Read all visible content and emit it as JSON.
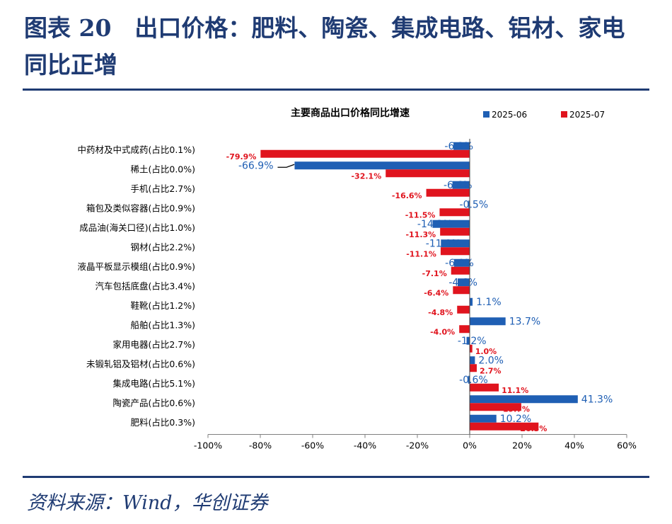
{
  "figure": {
    "title": "图表 20　出口价格：肥料、陶瓷、集成电路、铝材、家电同比正增",
    "source": "资料来源：Wind，华创证券"
  },
  "colors": {
    "series1": "#1F5FB4",
    "series2": "#E0141E",
    "brand": "#1F3B73"
  },
  "chart_data": {
    "type": "bar",
    "orientation": "horizontal",
    "title": "主要商品出口价格同比增速",
    "legend_position": "top-right",
    "grid": false,
    "categories": [
      "中药材及中式成药(占比0.1%)",
      "稀土(占比0.0%)",
      "手机(占比2.7%)",
      "箱包及类似容器(占比0.9%)",
      "成品油(海关口径)(占比1.0%)",
      "钢材(占比2.2%)",
      "液晶平板显示模组(占比0.9%)",
      "汽车包括底盘(占比3.4%)",
      "鞋靴(占比1.2%)",
      "船舶(占比1.3%)",
      "家用电器(占比2.7%)",
      "未锻轧铝及铝材(占比0.6%)",
      "集成电路(占比5.1%)",
      "陶瓷产品(占比0.6%)",
      "肥料(占比0.3%)"
    ],
    "series": [
      {
        "name": "2025-06",
        "values": [
          -6.2,
          -66.9,
          -6.6,
          -0.5,
          -14.2,
          -11.0,
          -6.0,
          -4.6,
          1.1,
          13.7,
          -1.2,
          2.0,
          -0.6,
          41.3,
          10.2
        ],
        "labels": [
          "-6.2%",
          "-66.9%",
          "-6.6%",
          "-0.5%",
          "-14.2%",
          "-11.0%",
          "-6.0%",
          "-4.6%",
          "1.1%",
          "13.7%",
          "-1.2%",
          "2.0%",
          "-0.6%",
          "41.3%",
          "10.2%"
        ]
      },
      {
        "name": "2025-07",
        "values": [
          -79.9,
          -32.1,
          -16.6,
          -11.5,
          -11.3,
          -11.1,
          -7.1,
          -6.4,
          -4.8,
          -4.0,
          1.0,
          2.7,
          11.1,
          19.7,
          26.3
        ],
        "labels": [
          "-79.9%",
          "-32.1%",
          "-16.6%",
          "-11.5%",
          "-11.3%",
          "-11.1%",
          "-7.1%",
          "-6.4%",
          "-4.8%",
          "-4.0%",
          "1.0%",
          "2.7%",
          "11.1%",
          "19.7%",
          "26.3%"
        ]
      }
    ],
    "xlim": [
      -100,
      60
    ],
    "x_ticks": [
      -100,
      -80,
      -60,
      -40,
      -20,
      0,
      20,
      40,
      60
    ],
    "x_tick_labels": [
      "-100%",
      "-80%",
      "-60%",
      "-40%",
      "-20%",
      "0%",
      "20%",
      "40%",
      "60%"
    ]
  }
}
